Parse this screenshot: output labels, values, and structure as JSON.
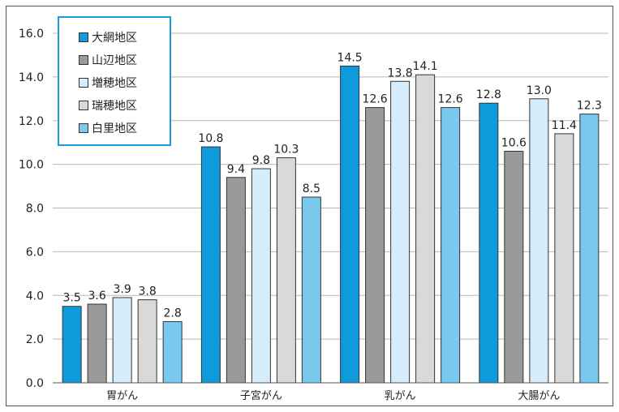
{
  "chart_data": {
    "type": "bar",
    "categories": [
      "胃がん",
      "子宮がん",
      "乳がん",
      "大腸がん"
    ],
    "series": [
      {
        "name": "大網地区",
        "color": "#0f9adc",
        "values": [
          3.5,
          10.8,
          14.5,
          12.8
        ]
      },
      {
        "name": "山辺地区",
        "color": "#9a9a9a",
        "values": [
          3.6,
          9.4,
          12.6,
          10.6
        ]
      },
      {
        "name": "増穂地区",
        "color": "#d6ecfa",
        "values": [
          3.9,
          9.8,
          13.8,
          13.0
        ]
      },
      {
        "name": "瑞穂地区",
        "color": "#d9d9d9",
        "values": [
          3.8,
          10.3,
          14.1,
          11.4
        ]
      },
      {
        "name": "白里地区",
        "color": "#79c9ef",
        "values": [
          2.8,
          8.5,
          12.6,
          12.3
        ]
      }
    ],
    "y_ticks": [
      "0.0",
      "2.0",
      "4.0",
      "6.0",
      "8.0",
      "10.0",
      "12.0",
      "14.0",
      "16.0"
    ],
    "ylim": [
      0,
      16
    ],
    "grid": true,
    "legend_position": "top-left",
    "title": "",
    "xlabel": "",
    "ylabel": ""
  }
}
